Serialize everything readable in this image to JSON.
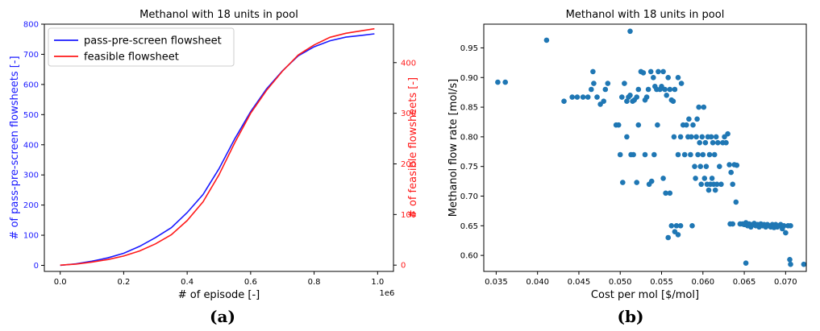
{
  "panel_labels": [
    "(a)",
    "(b)"
  ],
  "colors": {
    "series_pass": "#1a1aff",
    "series_feasible": "#ff1a1a",
    "scatter": "#1f77b4",
    "axis": "#000000",
    "left_axis_color": "#1a1aff",
    "right_axis_color": "#ff1a1a"
  },
  "chart_data": [
    {
      "type": "line",
      "title": "Methanol with 18 units in pool",
      "xlabel": "# of episode [-]",
      "x_scale_note": "1e6",
      "ylabel_left": "# of pass-pre-screen flowsheets [-]",
      "ylabel_right": "# of feasible flowsheets [-]",
      "xlim": [
        -0.05,
        1.05
      ],
      "ylim_left": [
        -20,
        800
      ],
      "ylim_right": [
        -12.4,
        476
      ],
      "xticks": [
        "0.0",
        "0.2",
        "0.4",
        "0.6",
        "0.8",
        "1.0"
      ],
      "yticks_left": [
        "0",
        "100",
        "200",
        "300",
        "400",
        "500",
        "600",
        "700",
        "800"
      ],
      "yticks_right": [
        "0",
        "100",
        "200",
        "300",
        "400"
      ],
      "legend_position": "top-left",
      "legend": [
        "pass-pre-screen flowsheet",
        "feasible flowsheet"
      ],
      "series": [
        {
          "name": "pass-pre-screen flowsheet",
          "axis": "left",
          "x": [
            0.0,
            0.05,
            0.1,
            0.15,
            0.2,
            0.25,
            0.3,
            0.35,
            0.4,
            0.45,
            0.5,
            0.55,
            0.6,
            0.65,
            0.7,
            0.75,
            0.8,
            0.85,
            0.9,
            0.95,
            0.99
          ],
          "y": [
            0,
            5,
            14,
            25,
            40,
            63,
            92,
            125,
            175,
            235,
            320,
            420,
            510,
            585,
            645,
            695,
            725,
            745,
            757,
            763,
            768
          ]
        },
        {
          "name": "feasible flowsheet",
          "axis": "right",
          "x": [
            0.0,
            0.05,
            0.1,
            0.15,
            0.2,
            0.25,
            0.3,
            0.35,
            0.4,
            0.45,
            0.5,
            0.55,
            0.6,
            0.65,
            0.7,
            0.75,
            0.8,
            0.85,
            0.9,
            0.95,
            0.99
          ],
          "y": [
            0,
            2,
            6,
            11,
            18,
            28,
            42,
            60,
            88,
            125,
            178,
            242,
            300,
            345,
            383,
            415,
            435,
            450,
            458,
            463,
            467
          ]
        }
      ]
    },
    {
      "type": "scatter",
      "title": "Methanol with 18 units in pool",
      "xlabel": "Cost per mol [$/mol]",
      "ylabel": "Methanol flow rate [mol/s]",
      "xlim": [
        0.0335,
        0.0725
      ],
      "ylim": [
        0.573,
        0.99
      ],
      "xticks": [
        "0.035",
        "0.040",
        "0.045",
        "0.050",
        "0.055",
        "0.060",
        "0.065",
        "0.070"
      ],
      "yticks": [
        "0.60",
        "0.65",
        "0.70",
        "0.75",
        "0.80",
        "0.85",
        "0.90",
        "0.95"
      ],
      "points": [
        [
          0.0352,
          0.892
        ],
        [
          0.0361,
          0.892
        ],
        [
          0.0411,
          0.963
        ],
        [
          0.0512,
          0.978
        ],
        [
          0.0432,
          0.86
        ],
        [
          0.0442,
          0.867
        ],
        [
          0.0448,
          0.867
        ],
        [
          0.0455,
          0.867
        ],
        [
          0.0461,
          0.867
        ],
        [
          0.0465,
          0.88
        ],
        [
          0.0467,
          0.91
        ],
        [
          0.0468,
          0.89
        ],
        [
          0.0472,
          0.867
        ],
        [
          0.0476,
          0.855
        ],
        [
          0.048,
          0.86
        ],
        [
          0.0482,
          0.88
        ],
        [
          0.0485,
          0.89
        ],
        [
          0.0495,
          0.82
        ],
        [
          0.0498,
          0.82
        ],
        [
          0.0502,
          0.867
        ],
        [
          0.0505,
          0.89
        ],
        [
          0.0508,
          0.86
        ],
        [
          0.051,
          0.867
        ],
        [
          0.0512,
          0.87
        ],
        [
          0.0515,
          0.86
        ],
        [
          0.0517,
          0.862
        ],
        [
          0.052,
          0.867
        ],
        [
          0.0522,
          0.88
        ],
        [
          0.0525,
          0.91
        ],
        [
          0.0528,
          0.908
        ],
        [
          0.053,
          0.862
        ],
        [
          0.0532,
          0.867
        ],
        [
          0.0534,
          0.88
        ],
        [
          0.0537,
          0.91
        ],
        [
          0.054,
          0.9
        ],
        [
          0.0542,
          0.885
        ],
        [
          0.0544,
          0.88
        ],
        [
          0.0546,
          0.91
        ],
        [
          0.0548,
          0.88
        ],
        [
          0.055,
          0.885
        ],
        [
          0.0552,
          0.91
        ],
        [
          0.0554,
          0.88
        ],
        [
          0.0556,
          0.87
        ],
        [
          0.0558,
          0.9
        ],
        [
          0.056,
          0.88
        ],
        [
          0.0562,
          0.862
        ],
        [
          0.0564,
          0.86
        ],
        [
          0.0566,
          0.88
        ],
        [
          0.057,
          0.9
        ],
        [
          0.0574,
          0.89
        ],
        [
          0.05,
          0.77
        ],
        [
          0.0503,
          0.723
        ],
        [
          0.0508,
          0.8
        ],
        [
          0.0513,
          0.77
        ],
        [
          0.0516,
          0.77
        ],
        [
          0.052,
          0.723
        ],
        [
          0.0522,
          0.82
        ],
        [
          0.053,
          0.77
        ],
        [
          0.0535,
          0.72
        ],
        [
          0.0538,
          0.725
        ],
        [
          0.0541,
          0.77
        ],
        [
          0.0545,
          0.82
        ],
        [
          0.0552,
          0.73
        ],
        [
          0.0555,
          0.705
        ],
        [
          0.056,
          0.705
        ],
        [
          0.0565,
          0.8
        ],
        [
          0.057,
          0.77
        ],
        [
          0.0558,
          0.63
        ],
        [
          0.0562,
          0.65
        ],
        [
          0.0566,
          0.64
        ],
        [
          0.0568,
          0.65
        ],
        [
          0.057,
          0.635
        ],
        [
          0.0573,
          0.65
        ],
        [
          0.0587,
          0.65
        ],
        [
          0.0573,
          0.8
        ],
        [
          0.0576,
          0.82
        ],
        [
          0.0578,
          0.77
        ],
        [
          0.058,
          0.82
        ],
        [
          0.0582,
          0.8
        ],
        [
          0.0583,
          0.83
        ],
        [
          0.0585,
          0.77
        ],
        [
          0.0586,
          0.8
        ],
        [
          0.0588,
          0.82
        ],
        [
          0.059,
          0.75
        ],
        [
          0.0591,
          0.73
        ],
        [
          0.0592,
          0.8
        ],
        [
          0.0593,
          0.83
        ],
        [
          0.0594,
          0.77
        ],
        [
          0.0595,
          0.85
        ],
        [
          0.0596,
          0.79
        ],
        [
          0.0597,
          0.75
        ],
        [
          0.0598,
          0.72
        ],
        [
          0.0599,
          0.8
        ],
        [
          0.06,
          0.77
        ],
        [
          0.0601,
          0.85
        ],
        [
          0.0602,
          0.73
        ],
        [
          0.0603,
          0.79
        ],
        [
          0.0604,
          0.75
        ],
        [
          0.0605,
          0.72
        ],
        [
          0.0606,
          0.8
        ],
        [
          0.0607,
          0.71
        ],
        [
          0.0608,
          0.77
        ],
        [
          0.0609,
          0.72
        ],
        [
          0.061,
          0.8
        ],
        [
          0.0611,
          0.73
        ],
        [
          0.0612,
          0.79
        ],
        [
          0.0613,
          0.72
        ],
        [
          0.0614,
          0.77
        ],
        [
          0.0615,
          0.71
        ],
        [
          0.0616,
          0.8
        ],
        [
          0.0617,
          0.72
        ],
        [
          0.0618,
          0.79
        ],
        [
          0.062,
          0.75
        ],
        [
          0.0622,
          0.72
        ],
        [
          0.0624,
          0.79
        ],
        [
          0.0626,
          0.8
        ],
        [
          0.0628,
          0.79
        ],
        [
          0.063,
          0.805
        ],
        [
          0.0632,
          0.753
        ],
        [
          0.0634,
          0.74
        ],
        [
          0.0636,
          0.72
        ],
        [
          0.0638,
          0.753
        ],
        [
          0.064,
          0.69
        ],
        [
          0.0641,
          0.752
        ],
        [
          0.0633,
          0.653
        ],
        [
          0.0636,
          0.653
        ],
        [
          0.0645,
          0.653
        ],
        [
          0.0648,
          0.653
        ],
        [
          0.065,
          0.652
        ],
        [
          0.0652,
          0.655
        ],
        [
          0.0654,
          0.65
        ],
        [
          0.0656,
          0.653
        ],
        [
          0.0658,
          0.648
        ],
        [
          0.066,
          0.652
        ],
        [
          0.0662,
          0.654
        ],
        [
          0.0664,
          0.65
        ],
        [
          0.0666,
          0.652
        ],
        [
          0.0668,
          0.648
        ],
        [
          0.067,
          0.653
        ],
        [
          0.0672,
          0.65
        ],
        [
          0.0674,
          0.652
        ],
        [
          0.0676,
          0.648
        ],
        [
          0.0678,
          0.652
        ],
        [
          0.068,
          0.65
        ],
        [
          0.0682,
          0.648
        ],
        [
          0.0684,
          0.652
        ],
        [
          0.0686,
          0.647
        ],
        [
          0.0688,
          0.652
        ],
        [
          0.069,
          0.648
        ],
        [
          0.0692,
          0.65
        ],
        [
          0.0694,
          0.652
        ],
        [
          0.0696,
          0.645
        ],
        [
          0.0698,
          0.65
        ],
        [
          0.07,
          0.638
        ],
        [
          0.0703,
          0.65
        ],
        [
          0.0706,
          0.65
        ],
        [
          0.0652,
          0.587
        ],
        [
          0.0705,
          0.593
        ],
        [
          0.0706,
          0.585
        ],
        [
          0.0722,
          0.585
        ]
      ]
    }
  ]
}
